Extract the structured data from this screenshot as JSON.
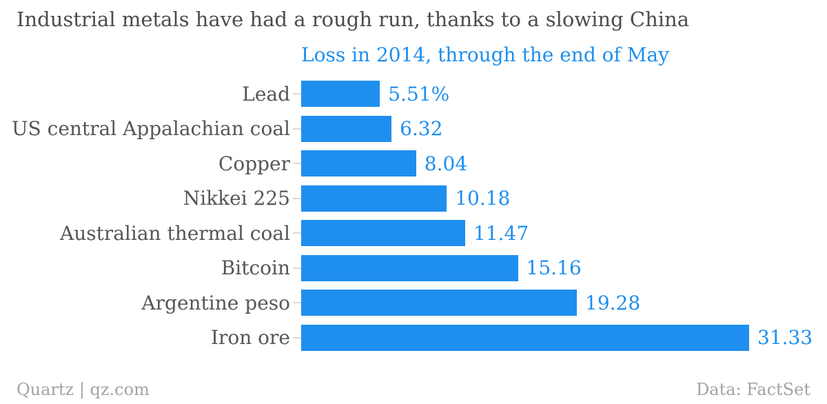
{
  "header": {
    "title": "Industrial metals have had a rough run, thanks to a slowing China",
    "subtitle": "Loss in 2014, through the end of May"
  },
  "footer": {
    "left": "Quartz | qz.com",
    "right": "Data: FactSet"
  },
  "colors": {
    "accent_blue": "#1e8fee",
    "title_gray": "#4c4c4c",
    "label_gray": "#565656",
    "footer_gray": "#a3a3a3",
    "tick_gray": "#d9d9d9"
  },
  "chart_data": {
    "type": "bar",
    "orientation": "horizontal",
    "title": "Industrial metals have had a rough run, thanks to a slowing China",
    "subtitle": "Loss in 2014, through the end of May",
    "categories": [
      "Lead",
      "US central Appalachian coal",
      "Copper",
      "Nikkei 225",
      "Australian thermal coal",
      "Bitcoin",
      "Argentine peso",
      "Iron ore"
    ],
    "values": [
      5.51,
      6.32,
      8.04,
      10.18,
      11.47,
      15.16,
      19.28,
      31.33
    ],
    "value_labels": [
      "5.51%",
      "6.32",
      "8.04",
      "10.18",
      "11.47",
      "15.16",
      "19.28",
      "31.33"
    ],
    "xlabel": "",
    "ylabel": "",
    "xlim": [
      0,
      31.33
    ],
    "grid": false,
    "legend": false,
    "source": "Data: FactSet",
    "unit": "percent loss"
  }
}
